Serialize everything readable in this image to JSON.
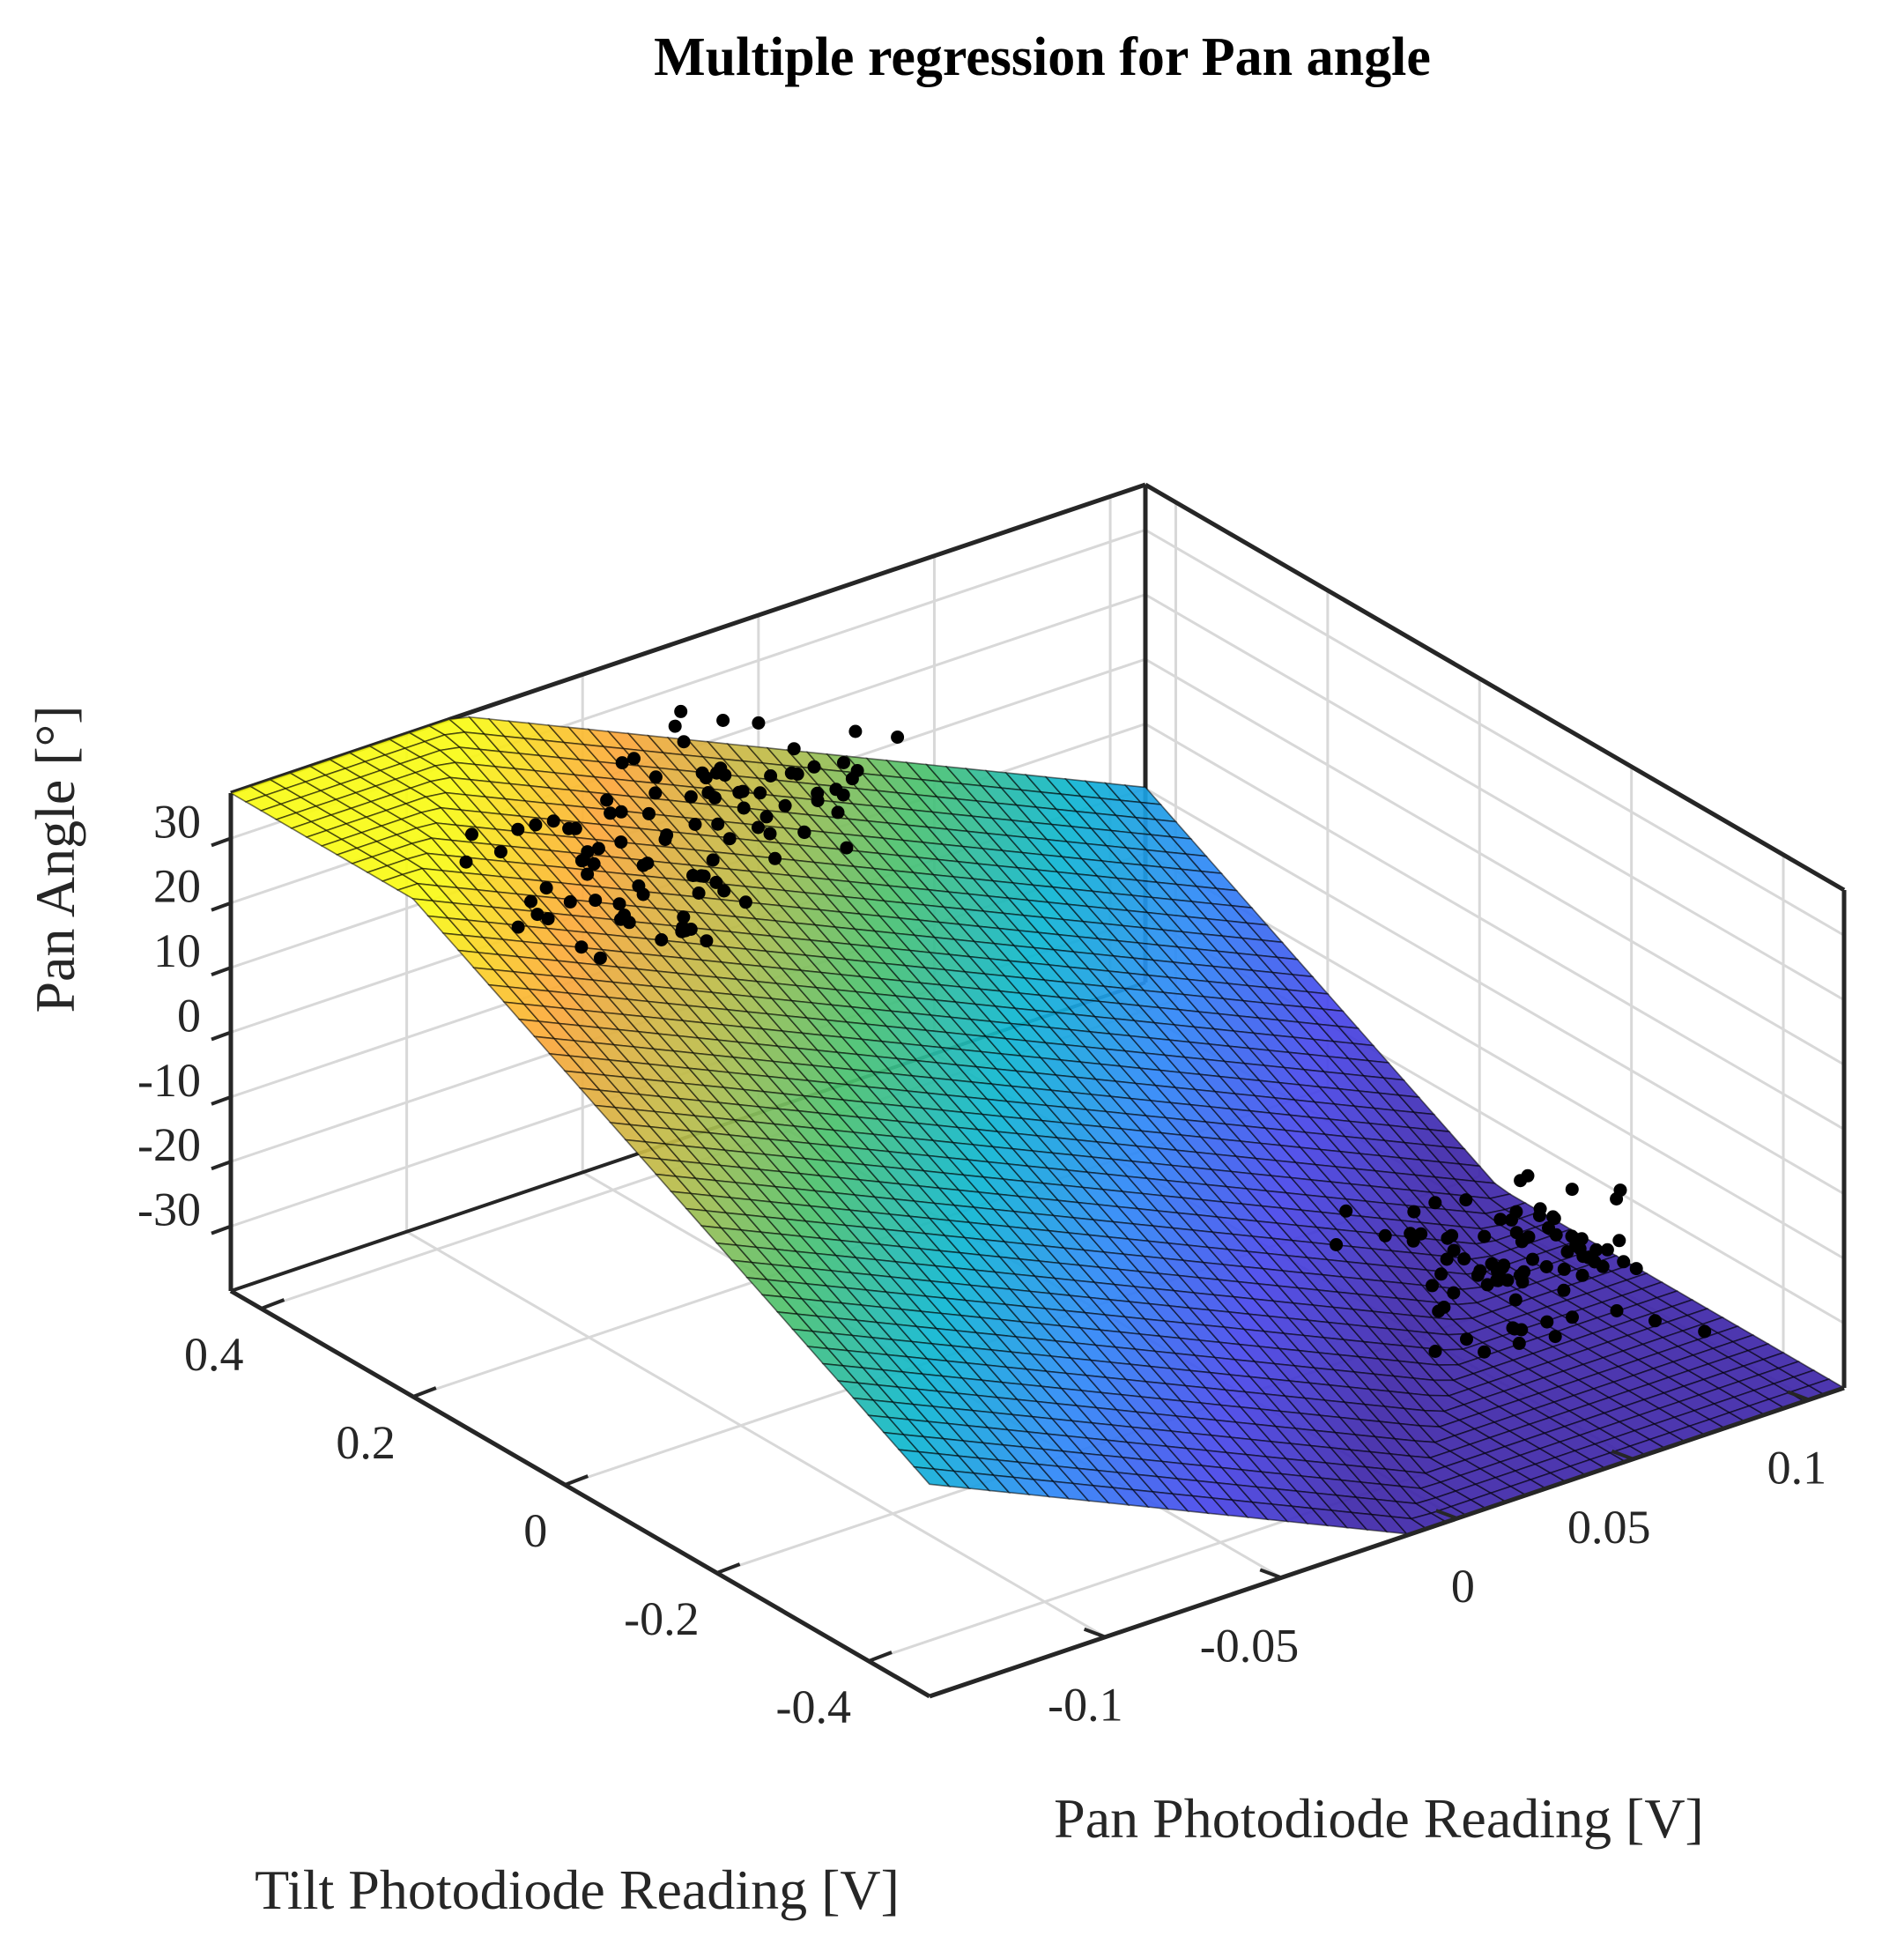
{
  "chart_data": {
    "type": "surface3d+scatter3d",
    "title": "Multiple regression for Pan angle",
    "xlabel": "Pan Photodiode Reading [V]",
    "ylabel": "Tilt Photodiode Reading [V]",
    "zlabel": "Pan Angle [°]",
    "xlim": [
      -0.15,
      0.11
    ],
    "ylim": [
      -0.48,
      0.44
    ],
    "zlim": [
      -40,
      37
    ],
    "xticks": [
      -0.1,
      -0.05,
      0,
      0.05,
      0.1
    ],
    "xtick_labels": [
      "-0.1",
      "-0.05",
      "0",
      "0.05",
      "0.1"
    ],
    "yticks": [
      -0.4,
      -0.2,
      0,
      0.2,
      0.4
    ],
    "ytick_labels": [
      "-0.4",
      "-0.2",
      "0",
      "0.2",
      "0.4"
    ],
    "zticks": [
      -30,
      -20,
      -10,
      0,
      10,
      20,
      30
    ],
    "ztick_labels": [
      "-30",
      "-20",
      "-10",
      "0",
      "10",
      "20",
      "30"
    ],
    "grid": true,
    "colormap": "parula",
    "colormap_stops": [
      "#3e26a8",
      "#4746eb",
      "#2e87f7",
      "#0cb6d2",
      "#4ac16d",
      "#bebc48",
      "#fca63a",
      "#f9fb15"
    ],
    "regression_model": {
      "intercept": -12.0,
      "coef_pan": -240,
      "coef_tilt": 65
    },
    "surface_grid": {
      "x_from": -0.15,
      "x_to": 0.11,
      "y_from": -0.48,
      "y_to": 0.44,
      "n": 46
    },
    "points": [
      {
        "x": -0.024,
        "y": 0.282,
        "z": 31.5
      },
      {
        "x": -0.066,
        "y": 0.315,
        "z": 27.2
      },
      {
        "x": -0.08,
        "y": 0.302,
        "z": 23.1
      },
      {
        "x": -0.025,
        "y": 0.222,
        "z": 29.5
      },
      {
        "x": -0.091,
        "y": 0.396,
        "z": 22.8
      },
      {
        "x": -0.07,
        "y": 0.202,
        "z": 25.8
      },
      {
        "x": -0.073,
        "y": 0.285,
        "z": 16.3
      },
      {
        "x": -0.055,
        "y": 0.308,
        "z": 21.4
      },
      {
        "x": -0.011,
        "y": 0.206,
        "z": 36.1
      },
      {
        "x": -0.076,
        "y": 0.318,
        "z": 21.4
      },
      {
        "x": -0.06,
        "y": 0.283,
        "z": 24.7
      },
      {
        "x": -0.071,
        "y": 0.2,
        "z": 17.8
      },
      {
        "x": -0.06,
        "y": 0.222,
        "z": 25.0
      },
      {
        "x": -0.042,
        "y": 0.299,
        "z": 22.0
      },
      {
        "x": -0.082,
        "y": 0.301,
        "z": 28.5
      },
      {
        "x": -0.03,
        "y": 0.185,
        "z": 23.9
      },
      {
        "x": -0.045,
        "y": 0.232,
        "z": 26.6
      },
      {
        "x": -0.077,
        "y": 0.182,
        "z": 22.0
      },
      {
        "x": -0.055,
        "y": 0.321,
        "z": 27.7
      },
      {
        "x": -0.095,
        "y": 0.385,
        "z": 20.0
      },
      {
        "x": -0.072,
        "y": 0.317,
        "z": 22.5
      },
      {
        "x": -0.075,
        "y": 0.161,
        "z": 19.4
      },
      {
        "x": -0.093,
        "y": 0.309,
        "z": 18.7
      },
      {
        "x": -0.057,
        "y": 0.34,
        "z": 32.1
      },
      {
        "x": -0.087,
        "y": 0.314,
        "z": 14.6
      },
      {
        "x": -0.034,
        "y": 0.222,
        "z": 24.5
      },
      {
        "x": -0.038,
        "y": 0.186,
        "z": 32.6
      },
      {
        "x": -0.085,
        "y": 0.294,
        "z": 18.2
      },
      {
        "x": -0.077,
        "y": 0.235,
        "z": 21.9
      },
      {
        "x": -0.067,
        "y": 0.213,
        "z": 32.4
      },
      {
        "x": -0.025,
        "y": 0.194,
        "z": 34.3
      },
      {
        "x": -0.074,
        "y": 0.274,
        "z": 15.5
      },
      {
        "x": -0.031,
        "y": 0.253,
        "z": 31.0
      },
      {
        "x": -0.033,
        "y": 0.252,
        "z": 26.4
      },
      {
        "x": -0.041,
        "y": 0.3,
        "z": 30.4
      },
      {
        "x": -0.066,
        "y": 0.19,
        "z": 24.8
      },
      {
        "x": -0.049,
        "y": 0.287,
        "z": 32.0
      },
      {
        "x": -0.082,
        "y": 0.275,
        "z": 19.2
      },
      {
        "x": -0.048,
        "y": 0.275,
        "z": 28.8
      },
      {
        "x": -0.086,
        "y": 0.321,
        "z": 18.7
      },
      {
        "x": -0.054,
        "y": 0.234,
        "z": 36.2
      },
      {
        "x": -0.04,
        "y": 0.233,
        "z": 20.8
      },
      {
        "x": -0.059,
        "y": 0.186,
        "z": 35.3
      },
      {
        "x": -0.094,
        "y": 0.186,
        "z": 24.5
      },
      {
        "x": -0.054,
        "y": 0.325,
        "z": 29.7
      },
      {
        "x": -0.037,
        "y": 0.258,
        "z": 25.0
      },
      {
        "x": -0.079,
        "y": 0.174,
        "z": 21.3
      },
      {
        "x": -0.077,
        "y": 0.3,
        "z": 22.2
      },
      {
        "x": -0.044,
        "y": 0.221,
        "z": 26.2
      },
      {
        "x": -0.04,
        "y": 0.353,
        "z": 30.7
      },
      {
        "x": -0.046,
        "y": 0.296,
        "z": 30.1
      },
      {
        "x": -0.065,
        "y": 0.32,
        "z": 22.0
      },
      {
        "x": -0.063,
        "y": 0.237,
        "z": 34.3
      },
      {
        "x": -0.075,
        "y": 0.318,
        "z": 19.0
      },
      {
        "x": -0.044,
        "y": 0.346,
        "z": 34.3
      },
      {
        "x": -0.034,
        "y": 0.205,
        "z": 31.7
      },
      {
        "x": -0.059,
        "y": 0.311,
        "z": 25.9
      },
      {
        "x": -0.082,
        "y": 0.377,
        "z": 23.2
      },
      {
        "x": -0.022,
        "y": 0.226,
        "z": 32.8
      },
      {
        "x": -0.024,
        "y": 0.217,
        "z": 28.8
      },
      {
        "x": -0.041,
        "y": 0.19,
        "z": 28.0
      },
      {
        "x": -0.076,
        "y": 0.189,
        "z": 19.1
      },
      {
        "x": -0.06,
        "y": 0.2,
        "z": 29.8
      },
      {
        "x": -0.038,
        "y": 0.319,
        "z": 27.8
      },
      {
        "x": -0.046,
        "y": 0.293,
        "z": 28.0
      },
      {
        "x": -0.056,
        "y": 0.256,
        "z": 19.5
      },
      {
        "x": -0.07,
        "y": 0.311,
        "z": 28.0
      },
      {
        "x": -0.092,
        "y": 0.247,
        "z": 15.7
      },
      {
        "x": -0.056,
        "y": 0.36,
        "z": 29.9
      },
      {
        "x": -0.074,
        "y": 0.347,
        "z": 23.9
      },
      {
        "x": -0.083,
        "y": 0.349,
        "z": 26.0
      },
      {
        "x": -0.052,
        "y": 0.197,
        "z": 35.6
      },
      {
        "x": -0.081,
        "y": 0.235,
        "z": 18.3
      },
      {
        "x": -0.076,
        "y": 0.184,
        "z": 19.6
      },
      {
        "x": -0.026,
        "y": 0.196,
        "z": 33.1
      },
      {
        "x": -0.028,
        "y": 0.237,
        "z": 32.5
      },
      {
        "x": -0.07,
        "y": 0.262,
        "z": 23.6
      },
      {
        "x": -0.036,
        "y": 0.32,
        "z": 35.5
      },
      {
        "x": -0.042,
        "y": 0.266,
        "z": 29.3
      },
      {
        "x": -0.066,
        "y": 0.286,
        "z": 20.9
      },
      {
        "x": -0.089,
        "y": 0.236,
        "z": 14.2
      },
      {
        "x": -0.04,
        "y": 0.357,
        "z": 35.1
      },
      {
        "x": -0.018,
        "y": 0.229,
        "z": 36.7
      },
      {
        "x": -0.073,
        "y": 0.327,
        "z": 21.5
      },
      {
        "x": -0.05,
        "y": 0.234,
        "z": 32.8
      },
      {
        "x": -0.063,
        "y": 0.165,
        "z": 22.9
      },
      {
        "x": -0.031,
        "y": 0.245,
        "z": 31.4
      },
      {
        "x": -0.03,
        "y": 0.301,
        "z": 35.3
      },
      {
        "x": -0.094,
        "y": 0.321,
        "z": 14.1
      },
      {
        "x": -0.026,
        "y": 0.215,
        "z": 26.6
      },
      {
        "x": -0.074,
        "y": 0.255,
        "z": 21.3
      },
      {
        "x": -0.069,
        "y": 0.199,
        "z": 23.1
      },
      {
        "x": -0.038,
        "y": 0.248,
        "z": 32.2
      },
      {
        "x": -0.071,
        "y": 0.311,
        "z": 30.2
      },
      {
        "x": -0.064,
        "y": 0.189,
        "z": 23.2
      },
      {
        "x": -0.079,
        "y": 0.344,
        "z": 26.2
      },
      {
        "x": -0.092,
        "y": 0.305,
        "z": 16.8
      },
      {
        "x": -0.086,
        "y": 0.381,
        "z": 20.2
      },
      {
        "x": -0.058,
        "y": 0.243,
        "z": 20.7
      },
      {
        "x": -0.082,
        "y": 0.188,
        "z": 19.0
      },
      {
        "x": 0.075,
        "y": -0.263,
        "z": -24.7
      },
      {
        "x": 0.088,
        "y": -0.333,
        "z": -35.6
      },
      {
        "x": 0.098,
        "y": -0.262,
        "z": -34.2
      },
      {
        "x": 0.084,
        "y": -0.31,
        "z": -27.3
      },
      {
        "x": 0.025,
        "y": -0.205,
        "z": -21.0
      },
      {
        "x": 0.063,
        "y": -0.224,
        "z": -25.4
      },
      {
        "x": 0.104,
        "y": -0.208,
        "z": -28.2
      },
      {
        "x": 0.056,
        "y": -0.266,
        "z": -25.5
      },
      {
        "x": 0.043,
        "y": -0.248,
        "z": -27.7
      },
      {
        "x": 0.055,
        "y": -0.307,
        "z": -34.8
      },
      {
        "x": 0.075,
        "y": -0.218,
        "z": -28.8
      },
      {
        "x": 0.084,
        "y": -0.255,
        "z": -27.5
      },
      {
        "x": 0.06,
        "y": -0.254,
        "z": -29.6
      },
      {
        "x": 0.054,
        "y": -0.239,
        "z": -26.2
      },
      {
        "x": 0.092,
        "y": -0.182,
        "z": -30.8
      },
      {
        "x": 0.048,
        "y": -0.331,
        "z": -29.5
      },
      {
        "x": 0.052,
        "y": -0.279,
        "z": -27.1
      },
      {
        "x": 0.039,
        "y": -0.335,
        "z": -31.3
      },
      {
        "x": 0.078,
        "y": -0.202,
        "z": -21.0
      },
      {
        "x": 0.102,
        "y": -0.221,
        "z": -33.4
      },
      {
        "x": 0.04,
        "y": -0.237,
        "z": -21.0
      },
      {
        "x": 0.079,
        "y": -0.279,
        "z": -30.6
      },
      {
        "x": 0.048,
        "y": -0.245,
        "z": -21.5
      },
      {
        "x": 0.039,
        "y": -0.153,
        "z": -21.9
      },
      {
        "x": 0.101,
        "y": -0.338,
        "z": -39.3
      },
      {
        "x": 0.073,
        "y": -0.236,
        "z": -26.5
      },
      {
        "x": 0.055,
        "y": -0.285,
        "z": -24.6
      },
      {
        "x": 0.052,
        "y": -0.293,
        "z": -25.5
      },
      {
        "x": 0.054,
        "y": -0.307,
        "z": -27.9
      },
      {
        "x": 0.058,
        "y": -0.207,
        "z": -27.8
      },
      {
        "x": 0.062,
        "y": -0.322,
        "z": -34.0
      },
      {
        "x": 0.077,
        "y": -0.285,
        "z": -25.7
      },
      {
        "x": 0.089,
        "y": -0.249,
        "z": -32.4
      },
      {
        "x": 0.057,
        "y": -0.269,
        "z": -26.6
      },
      {
        "x": 0.068,
        "y": -0.222,
        "z": -23.8
      },
      {
        "x": 0.09,
        "y": -0.236,
        "z": -32.8
      },
      {
        "x": 0.061,
        "y": -0.209,
        "z": -20.4
      },
      {
        "x": 0.058,
        "y": -0.296,
        "z": -34.0
      },
      {
        "x": 0.087,
        "y": -0.17,
        "z": -24.1
      },
      {
        "x": 0.034,
        "y": -0.298,
        "z": -26.6
      },
      {
        "x": 0.069,
        "y": -0.312,
        "z": -33.0
      },
      {
        "x": 0.094,
        "y": -0.196,
        "z": -25.7
      },
      {
        "x": 0.081,
        "y": -0.315,
        "z": -34.0
      },
      {
        "x": 0.056,
        "y": -0.282,
        "z": -24.6
      },
      {
        "x": 0.045,
        "y": -0.258,
        "z": -23.3
      },
      {
        "x": 0.066,
        "y": -0.292,
        "z": -26.0
      },
      {
        "x": 0.082,
        "y": -0.178,
        "z": -28.2
      },
      {
        "x": 0.032,
        "y": -0.303,
        "z": -32.1
      },
      {
        "x": 0.072,
        "y": -0.287,
        "z": -31.1
      },
      {
        "x": 0.05,
        "y": -0.324,
        "z": -30.5
      },
      {
        "x": 0.039,
        "y": -0.282,
        "z": -28.0
      },
      {
        "x": 0.101,
        "y": -0.227,
        "z": -25.0
      },
      {
        "x": 0.059,
        "y": -0.325,
        "z": -31.0
      },
      {
        "x": 0.054,
        "y": -0.26,
        "z": -26.6
      },
      {
        "x": 0.065,
        "y": -0.265,
        "z": -30.0
      },
      {
        "x": 0.071,
        "y": -0.239,
        "z": -31.3
      },
      {
        "x": 0.08,
        "y": -0.218,
        "z": -25.7
      },
      {
        "x": 0.064,
        "y": -0.283,
        "z": -25.1
      },
      {
        "x": 0.092,
        "y": -0.237,
        "z": -31.9
      },
      {
        "x": 0.079,
        "y": -0.255,
        "z": -31.3
      },
      {
        "x": 0.09,
        "y": -0.255,
        "z": -32.9
      },
      {
        "x": 0.086,
        "y": -0.191,
        "z": -27.6
      },
      {
        "x": 0.04,
        "y": -0.2,
        "z": -22.7
      },
      {
        "x": 0.048,
        "y": -0.21,
        "z": -23.2
      },
      {
        "x": 0.067,
        "y": -0.225,
        "z": -31.6
      },
      {
        "x": 0.052,
        "y": -0.218,
        "z": -29.6
      },
      {
        "x": 0.087,
        "y": -0.228,
        "z": -29.5
      },
      {
        "x": 0.054,
        "y": -0.173,
        "z": -23.4
      },
      {
        "x": 0.07,
        "y": -0.234,
        "z": -25.4
      },
      {
        "x": 0.089,
        "y": -0.213,
        "z": -33.3
      },
      {
        "x": 0.089,
        "y": -0.188,
        "z": -31.3
      },
      {
        "x": 0.065,
        "y": -0.262,
        "z": -29.2
      },
      {
        "x": 0.081,
        "y": -0.231,
        "z": -25.2
      },
      {
        "x": 0.048,
        "y": -0.196,
        "z": -24.1
      },
      {
        "x": 0.04,
        "y": -0.29,
        "z": -25.4
      },
      {
        "x": 0.055,
        "y": -0.218,
        "z": -24.2
      },
      {
        "x": 0.048,
        "y": -0.285,
        "z": -24.5
      },
      {
        "x": 0.059,
        "y": -0.273,
        "z": -28.1
      },
      {
        "x": 0.072,
        "y": -0.218,
        "z": -24.9
      },
      {
        "x": 0.037,
        "y": -0.321,
        "z": -29.9
      },
      {
        "x": 0.09,
        "y": -0.261,
        "z": -29.9
      },
      {
        "x": 0.075,
        "y": -0.289,
        "z": -24.6
      },
      {
        "x": 0.06,
        "y": -0.173,
        "z": -23.1
      },
      {
        "x": 0.079,
        "y": -0.28,
        "z": -27.6
      }
    ]
  }
}
